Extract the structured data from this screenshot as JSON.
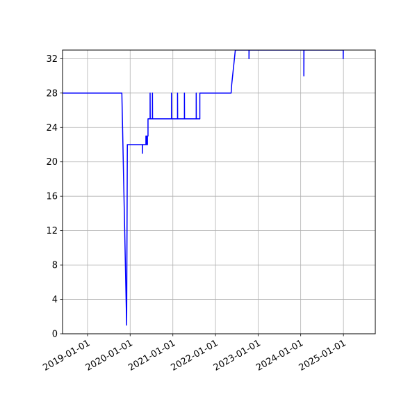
{
  "chart_data": {
    "type": "line",
    "title": "",
    "xlabel": "",
    "ylabel": "",
    "grid": true,
    "x_axis_type": "date",
    "xlim": [
      "2018-06-01",
      "2025-10-01"
    ],
    "ylim": [
      0,
      33
    ],
    "x_ticks": [
      "2019-01-01",
      "2020-01-01",
      "2021-01-01",
      "2022-01-01",
      "2023-01-01",
      "2024-01-01",
      "2025-01-01"
    ],
    "x_tick_labels": [
      "2019-01-01",
      "2020-01-01",
      "2021-01-01",
      "2022-01-01",
      "2023-01-01",
      "2024-01-01",
      "2025-01-01"
    ],
    "y_ticks": [
      0,
      4,
      8,
      12,
      16,
      20,
      24,
      28,
      32
    ],
    "y_tick_labels": [
      "0",
      "4",
      "8",
      "12",
      "16",
      "20",
      "24",
      "28",
      "32"
    ],
    "series": [
      {
        "color": "#0000ff",
        "points": [
          [
            "2018-06-01",
            28
          ],
          [
            "2019-10-22",
            28
          ],
          [
            "2019-12-02",
            1
          ],
          [
            "2019-12-08",
            22
          ],
          [
            "2020-04-15",
            22
          ],
          [
            "2020-04-15",
            21
          ],
          [
            "2020-04-16",
            22
          ],
          [
            "2020-05-15",
            22
          ],
          [
            "2020-05-15",
            23
          ],
          [
            "2020-05-20",
            23
          ],
          [
            "2020-05-20",
            22
          ],
          [
            "2020-05-28",
            22
          ],
          [
            "2020-05-28",
            23
          ],
          [
            "2020-06-02",
            23
          ],
          [
            "2020-06-02",
            25
          ],
          [
            "2020-06-20",
            25
          ],
          [
            "2020-06-20",
            28
          ],
          [
            "2020-06-21",
            25
          ],
          [
            "2020-07-10",
            25
          ],
          [
            "2020-07-10",
            28
          ],
          [
            "2020-07-11",
            25
          ],
          [
            "2020-12-20",
            25
          ],
          [
            "2020-12-20",
            28
          ],
          [
            "2020-12-21",
            25
          ],
          [
            "2021-02-10",
            25
          ],
          [
            "2021-02-10",
            28
          ],
          [
            "2021-02-11",
            25
          ],
          [
            "2021-04-10",
            25
          ],
          [
            "2021-04-10",
            28
          ],
          [
            "2021-04-11",
            25
          ],
          [
            "2021-07-20",
            25
          ],
          [
            "2021-07-20",
            28
          ],
          [
            "2021-07-21",
            25
          ],
          [
            "2021-08-20",
            25
          ],
          [
            "2021-08-20",
            28
          ],
          [
            "2022-05-15",
            28
          ],
          [
            "2022-05-20",
            29
          ],
          [
            "2022-06-20",
            33
          ],
          [
            "2022-10-15",
            33
          ],
          [
            "2022-10-15",
            32
          ],
          [
            "2022-10-16",
            33
          ],
          [
            "2024-01-28",
            33
          ],
          [
            "2024-01-28",
            30
          ],
          [
            "2024-01-29",
            33
          ],
          [
            "2024-12-30",
            33
          ],
          [
            "2024-12-30",
            32
          ],
          [
            "2024-12-31",
            33
          ]
        ]
      }
    ]
  }
}
